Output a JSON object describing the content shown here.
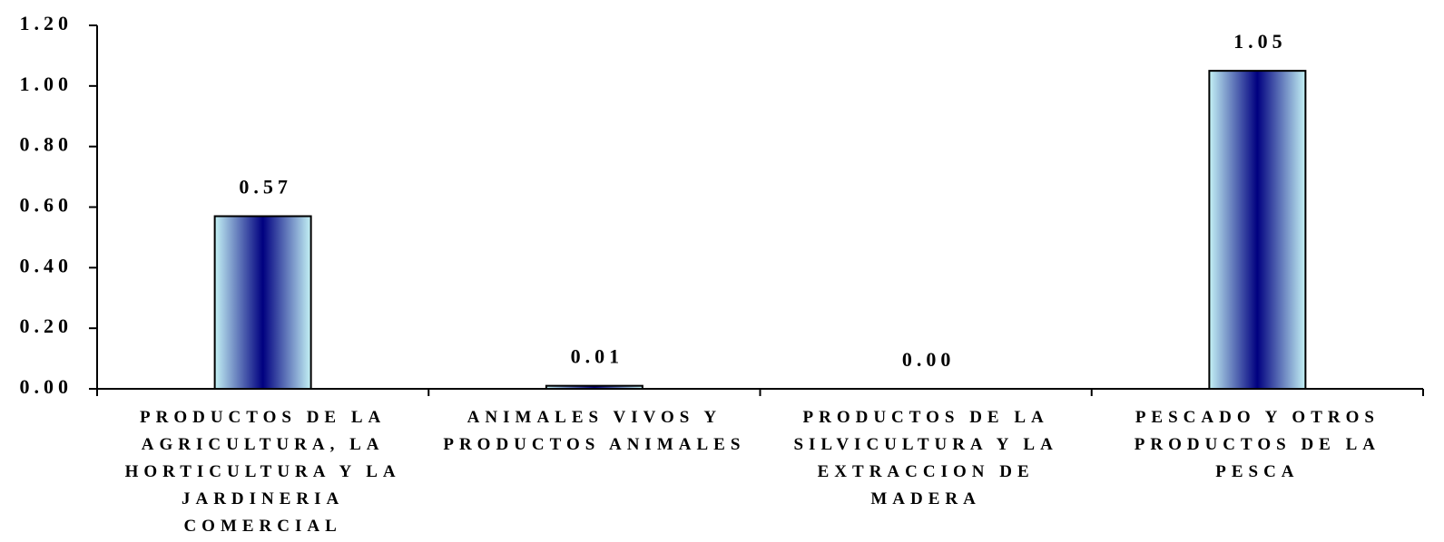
{
  "chart_data": {
    "type": "bar",
    "categories": [
      "PRODUCTOS DE LA AGRICULTURA, LA HORTICULTURA Y LA JARDINERIA COMERCIAL",
      "ANIMALES VIVOS Y PRODUCTOS ANIMALES",
      "PRODUCTOS DE LA SILVICULTURA Y LA EXTRACCION DE MADERA",
      "PESCADO Y OTROS PRODUCTOS DE LA PESCA"
    ],
    "values": [
      0.57,
      0.01,
      0.0,
      1.05
    ],
    "value_labels": [
      "0.57",
      "0.01",
      "0.00",
      "1.05"
    ],
    "gradient": [
      "#c4f2f5",
      "#000080",
      "#c4f2f5"
    ],
    "ylim": [
      0,
      1.2
    ],
    "yticks": [
      {
        "value": 0,
        "label": "0.00"
      },
      {
        "value": 0.2,
        "label": "0.20"
      },
      {
        "value": 0.4,
        "label": "0.40"
      },
      {
        "value": 0.6,
        "label": "0.60"
      },
      {
        "value": 0.8,
        "label": "0.80"
      },
      {
        "value": 1,
        "label": "1.00"
      },
      {
        "value": 1.2,
        "label": "1.20"
      }
    ],
    "grid": false
  }
}
